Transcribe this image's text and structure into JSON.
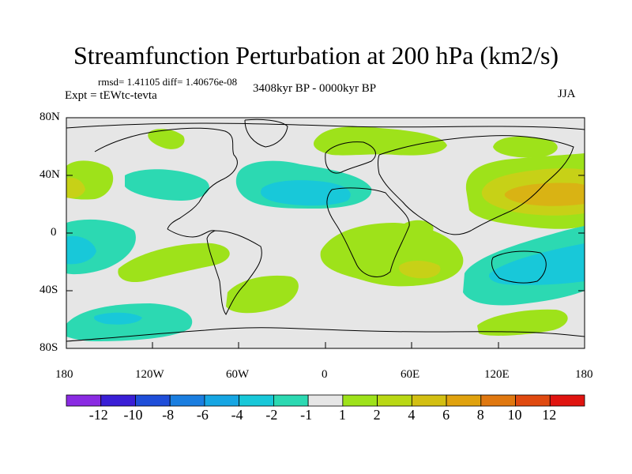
{
  "figure": {
    "title": "Streamfunction Perturbation at 200 hPa (km2/s)",
    "stats": "rmsd= 1.41105 diff= 1.40676e-08",
    "experiment": "Expt = tEWtc-tevta",
    "period": "3408kyr BP - 0000kyr BP",
    "season": "JJA"
  },
  "axes": {
    "y_labels": [
      "80N",
      "40N",
      "0",
      "40S",
      "80S"
    ],
    "x_labels": [
      "180",
      "120W",
      "60W",
      "0",
      "60E",
      "120E",
      "180"
    ]
  },
  "colorbar": {
    "labels": [
      "-12",
      "-10",
      "-8",
      "-6",
      "-4",
      "-2",
      "-1",
      "1",
      "2",
      "4",
      "6",
      "8",
      "10",
      "12"
    ],
    "colors": [
      "#8a2be2",
      "#3a1fd6",
      "#1f4ed9",
      "#1a7ee0",
      "#16a6e3",
      "#18c8d9",
      "#2cd9b2",
      "#e6e6e6",
      "#9ee21a",
      "#b9d814",
      "#d3bf12",
      "#e0a20e",
      "#e07810",
      "#e04a10",
      "#e01410"
    ]
  },
  "colors": {
    "background": "#e6e6e6",
    "pos_light": "#9ee21a",
    "pos_mid": "#c7d117",
    "pos_strong": "#d9b314",
    "neg_light": "#2cd9b2",
    "neg_mid": "#18c8d9"
  }
}
